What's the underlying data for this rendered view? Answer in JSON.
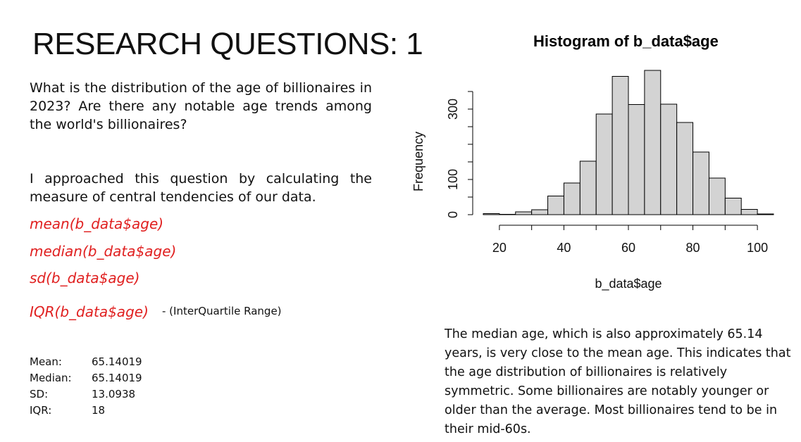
{
  "slide": {
    "title": "RESEARCH QUESTIONS: 1",
    "question": "What is the distribution of the age of billionaires in 2023? Are there any notable age trends among the world's billionaires?",
    "approach": "I approached this question by calculating the measure of central tendencies of our data.",
    "code_lines": [
      "mean(b_data$age)",
      "median(b_data$age)",
      "sd(b_data$age)",
      "IQR(b_data$age)"
    ],
    "iqr_note": "- (InterQuartile Range)",
    "stats": [
      {
        "label": "Mean:",
        "value": "65.14019"
      },
      {
        "label": "Median:",
        "value": "65.14019"
      },
      {
        "label": "SD:",
        "value": "13.0938"
      },
      {
        "label": "IQR:",
        "value": "18"
      }
    ],
    "summary": "The median age, which is also approximately 65.14 years, is very close to the mean age. This indicates that the age distribution of billionaires is relatively symmetric. Some billionaires are notably younger or older than the average. Most billionaires tend to be in their mid-60s."
  },
  "chart_data": {
    "type": "bar",
    "title": "Histogram of b_data$age",
    "xlabel": "b_data$age",
    "ylabel": "Frequency",
    "bin_edges": [
      15,
      20,
      25,
      30,
      35,
      40,
      45,
      50,
      55,
      60,
      65,
      70,
      75,
      80,
      85,
      90,
      95,
      100,
      105
    ],
    "values": [
      3,
      1,
      8,
      14,
      53,
      90,
      152,
      286,
      393,
      313,
      410,
      314,
      262,
      178,
      104,
      47,
      15,
      2
    ],
    "xticks": [
      20,
      40,
      60,
      80,
      100
    ],
    "yticks": [
      0,
      100,
      300
    ],
    "xlim": [
      15,
      105
    ],
    "ylim": [
      0,
      400
    ],
    "bar_color": "#d3d3d3",
    "grid": false
  }
}
